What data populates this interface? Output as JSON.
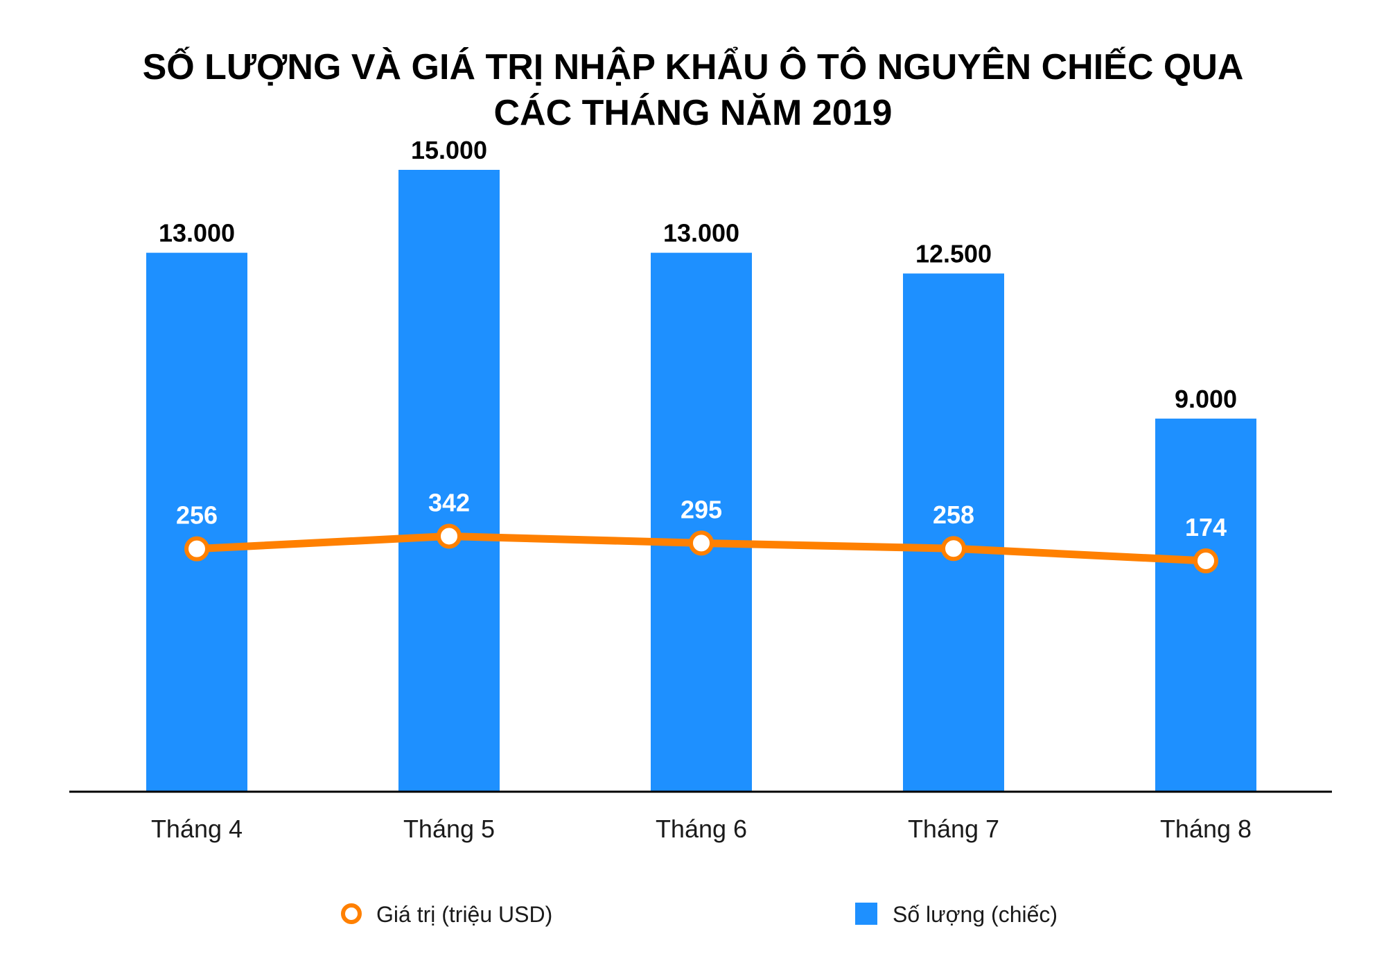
{
  "chart_data": {
    "type": "bar",
    "title": "SỐ LƯỢNG VÀ GIÁ TRỊ NHẬP KHẨU Ô TÔ NGUYÊN CHIẾC QUA CÁC THÁNG NĂM 2019",
    "title_lines": [
      "SỐ LƯỢNG VÀ GIÁ TRỊ NHẬP KHẨU Ô TÔ NGUYÊN CHIẾC QUA",
      "CÁC THÁNG NĂM 2019"
    ],
    "categories": [
      "Tháng 4",
      "Tháng 5",
      "Tháng 6",
      "Tháng 7",
      "Tháng 8"
    ],
    "series": [
      {
        "name": "Số lượng (chiếc)",
        "type": "bar",
        "color": "#1E90FF",
        "values": [
          13000,
          15000,
          13000,
          12500,
          9000
        ],
        "labels": [
          "13.000",
          "15.000",
          "13.000",
          "12.500",
          "9.000"
        ]
      },
      {
        "name": "Giá trị (triệu USD)",
        "type": "line",
        "color": "#FF8000",
        "values": [
          256,
          342,
          295,
          258,
          174
        ],
        "labels": [
          "256",
          "342",
          "295",
          "258",
          "174"
        ]
      }
    ],
    "ylim": [
      0,
      15000
    ],
    "grid": false,
    "legend_position": "bottom"
  }
}
